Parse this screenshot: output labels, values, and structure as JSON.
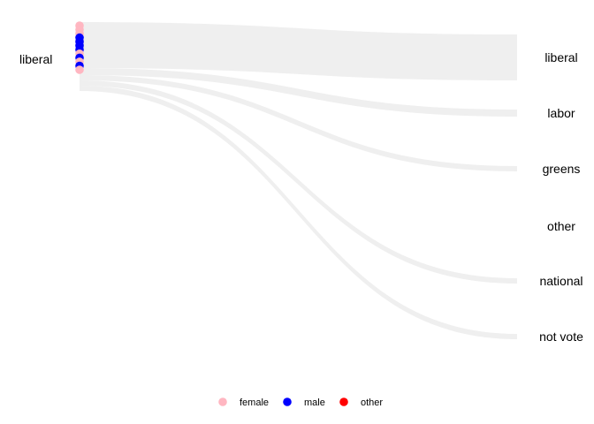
{
  "chart_data": {
    "type": "alluvial",
    "source_label": "liberal",
    "target_labels": [
      "liberal",
      "labor",
      "greens",
      "other",
      "national",
      "not vote"
    ],
    "flows": [
      {
        "source": "liberal",
        "target": "liberal",
        "weight": 26
      },
      {
        "source": "liberal",
        "target": "labor",
        "weight": 4
      },
      {
        "source": "liberal",
        "target": "greens",
        "weight": 3
      },
      {
        "source": "liberal",
        "target": "other",
        "weight": 0
      },
      {
        "source": "liberal",
        "target": "national",
        "weight": 3
      },
      {
        "source": "liberal",
        "target": "not vote",
        "weight": 3
      }
    ],
    "points": [
      {
        "group": "female",
        "order": 1
      },
      {
        "group": "female",
        "order": 2
      },
      {
        "group": "female",
        "order": 3
      },
      {
        "group": "male",
        "order": 4
      },
      {
        "group": "male",
        "order": 5
      },
      {
        "group": "male",
        "order": 6
      },
      {
        "group": "male",
        "order": 7
      },
      {
        "group": "female",
        "order": 8
      },
      {
        "group": "male",
        "order": 9
      },
      {
        "group": "female",
        "order": 10
      },
      {
        "group": "male",
        "order": 11
      },
      {
        "group": "female",
        "order": 12
      }
    ],
    "legend": {
      "position": "bottom",
      "items": [
        {
          "label": "female",
          "color": "#ffb6c1"
        },
        {
          "label": "male",
          "color": "#0000ff"
        },
        {
          "label": "other",
          "color": "#ff0000"
        }
      ]
    },
    "flow_color": "#efefef",
    "title": "",
    "xlabel": "",
    "ylabel": ""
  }
}
